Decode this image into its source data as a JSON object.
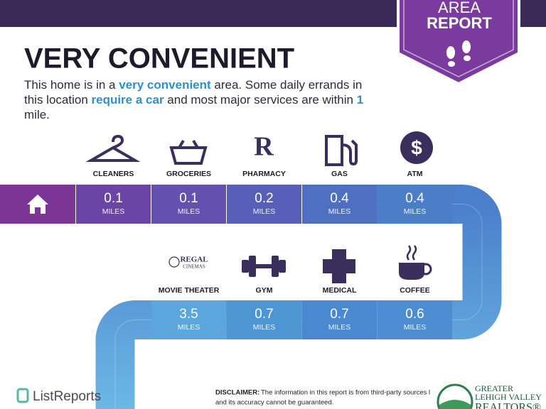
{
  "badge": [
    "AREA",
    "REPORT"
  ],
  "heading": "VERY CONVENIENT",
  "description": [
    "This home is in a ",
    "very convenient",
    " area. Some daily errands in this location ",
    "require a car",
    " and most major services are within ",
    "1",
    " mile."
  ],
  "unit": "MILES",
  "row1": [
    {
      "label": "CLEANERS",
      "distance": 0.1
    },
    {
      "label": "GROCERIES",
      "distance": 0.1
    },
    {
      "label": "PHARMACY",
      "distance": 0.2
    },
    {
      "label": "GAS",
      "distance": 0.4
    },
    {
      "label": "ATM",
      "distance": 0.4
    }
  ],
  "row2": [
    {
      "label": "MOVIE THEATER",
      "distance": 3.5
    },
    {
      "label": "GYM",
      "distance": 0.7
    },
    {
      "label": "MEDICAL",
      "distance": 0.7
    },
    {
      "label": "COFFEE",
      "distance": 0.6
    }
  ],
  "regal": [
    "REGAL",
    "CINEMAS"
  ],
  "footer": {
    "brand": "ListReports",
    "disclaimer_label": "DISCLAIMER:",
    "disclaimer": [
      "The information in this report is from third-party sources l",
      "and its accuracy cannot be guaranteed."
    ],
    "realtor": [
      "GREATER",
      "LEHIGH VALLEY",
      "REALTORS®"
    ]
  }
}
